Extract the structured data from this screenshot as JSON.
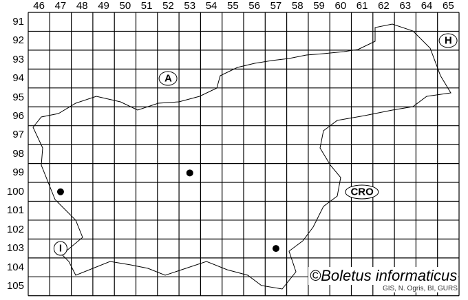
{
  "grid": {
    "columns": [
      "46",
      "47",
      "48",
      "49",
      "50",
      "51",
      "52",
      "53",
      "54",
      "55",
      "56",
      "57",
      "58",
      "59",
      "60",
      "61",
      "62",
      "63",
      "64",
      "65"
    ],
    "rows": [
      "91",
      "92",
      "93",
      "94",
      "95",
      "96",
      "97",
      "98",
      "99",
      "100",
      "101",
      "102",
      "103",
      "104",
      "105"
    ]
  },
  "countries": [
    {
      "label": "A",
      "col": "52",
      "row": "94"
    },
    {
      "label": "H",
      "col": "65",
      "row": "92"
    },
    {
      "label": "CRO",
      "col": "61",
      "row": "100"
    },
    {
      "label": "I",
      "col": "47",
      "row": "103"
    }
  ],
  "records": [
    {
      "col": "47",
      "row": "100"
    },
    {
      "col": "53",
      "row": "99"
    },
    {
      "col": "57",
      "row": "103"
    }
  ],
  "copyright": "©Boletus informaticus",
  "credit": "GIS, N. Ogris, BI, GURS"
}
